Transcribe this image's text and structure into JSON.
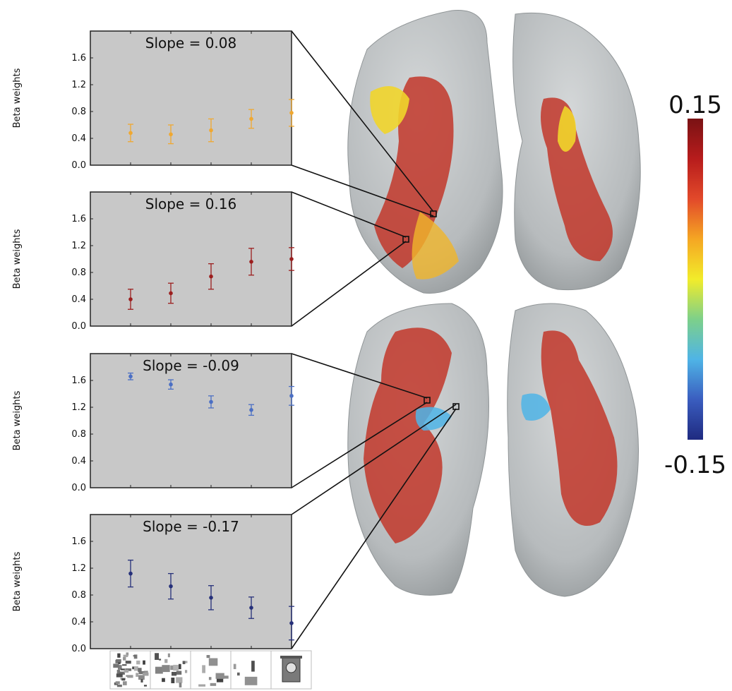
{
  "colors": {
    "panel_bg": "#c8c8c8",
    "brain_surface": "#b4b8ba",
    "brain_edge": "#8f9496",
    "cb_stops": [
      "#1f2a80",
      "#3a5dbf",
      "#4fb4e6",
      "#7dd08a",
      "#f2ec2a",
      "#f5a623",
      "#e2492a",
      "#b71c1c",
      "#7a1214"
    ]
  },
  "colorbar": {
    "max_label": "0.15",
    "min_label": "-0.15"
  },
  "chart_data": [
    {
      "type": "scatter",
      "title": "Slope = 0.08",
      "ylabel": "Beta weights",
      "ylim": [
        0,
        2.0
      ],
      "yticks": [
        "0.0",
        "0.4",
        "0.8",
        "1.2",
        "1.6"
      ],
      "color": "#f0a830",
      "x": [
        1,
        2,
        3,
        4,
        5
      ],
      "y": [
        0.48,
        0.46,
        0.52,
        0.69,
        0.78
      ],
      "err": [
        0.13,
        0.14,
        0.17,
        0.14,
        0.2
      ]
    },
    {
      "type": "scatter",
      "title": "Slope = 0.16",
      "ylabel": "Beta weights",
      "ylim": [
        0,
        2.0
      ],
      "yticks": [
        "0.0",
        "0.4",
        "0.8",
        "1.2",
        "1.6"
      ],
      "color": "#9c1e1e",
      "x": [
        1,
        2,
        3,
        4,
        5
      ],
      "y": [
        0.4,
        0.49,
        0.74,
        0.96,
        1.0
      ],
      "err": [
        0.15,
        0.15,
        0.19,
        0.2,
        0.17
      ]
    },
    {
      "type": "scatter",
      "title": "Slope = -0.09",
      "ylabel": "Beta weights",
      "ylim": [
        0,
        2.0
      ],
      "yticks": [
        "0.0",
        "0.4",
        "0.8",
        "1.2",
        "1.6"
      ],
      "color": "#4b6fc4",
      "x": [
        1,
        2,
        3,
        4,
        5
      ],
      "y": [
        1.66,
        1.54,
        1.28,
        1.16,
        1.37
      ],
      "err": [
        0.05,
        0.07,
        0.09,
        0.08,
        0.14
      ]
    },
    {
      "type": "scatter",
      "title": "Slope = -0.17",
      "ylabel": "Beta weights",
      "ylim": [
        0,
        2.0
      ],
      "yticks": [
        "0.0",
        "0.4",
        "0.8",
        "1.2",
        "1.6"
      ],
      "color": "#26307a",
      "x": [
        1,
        2,
        3,
        4,
        5
      ],
      "y": [
        1.12,
        0.93,
        0.76,
        0.61,
        0.38
      ],
      "err": [
        0.2,
        0.19,
        0.18,
        0.16,
        0.25
      ]
    }
  ]
}
